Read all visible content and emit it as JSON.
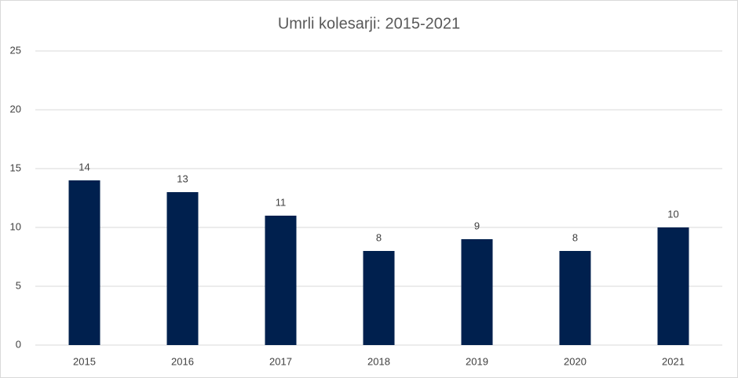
{
  "chart_data": {
    "type": "bar",
    "title": "Umrli kolesarji: 2015-2021",
    "categories": [
      "2015",
      "2016",
      "2017",
      "2018",
      "2019",
      "2020",
      "2021"
    ],
    "values": [
      14,
      13,
      11,
      8,
      9,
      8,
      10
    ],
    "color": "#00204e",
    "ylim": [
      0,
      25
    ],
    "yticks": [
      0,
      5,
      10,
      15,
      20,
      25
    ],
    "grid": true
  }
}
